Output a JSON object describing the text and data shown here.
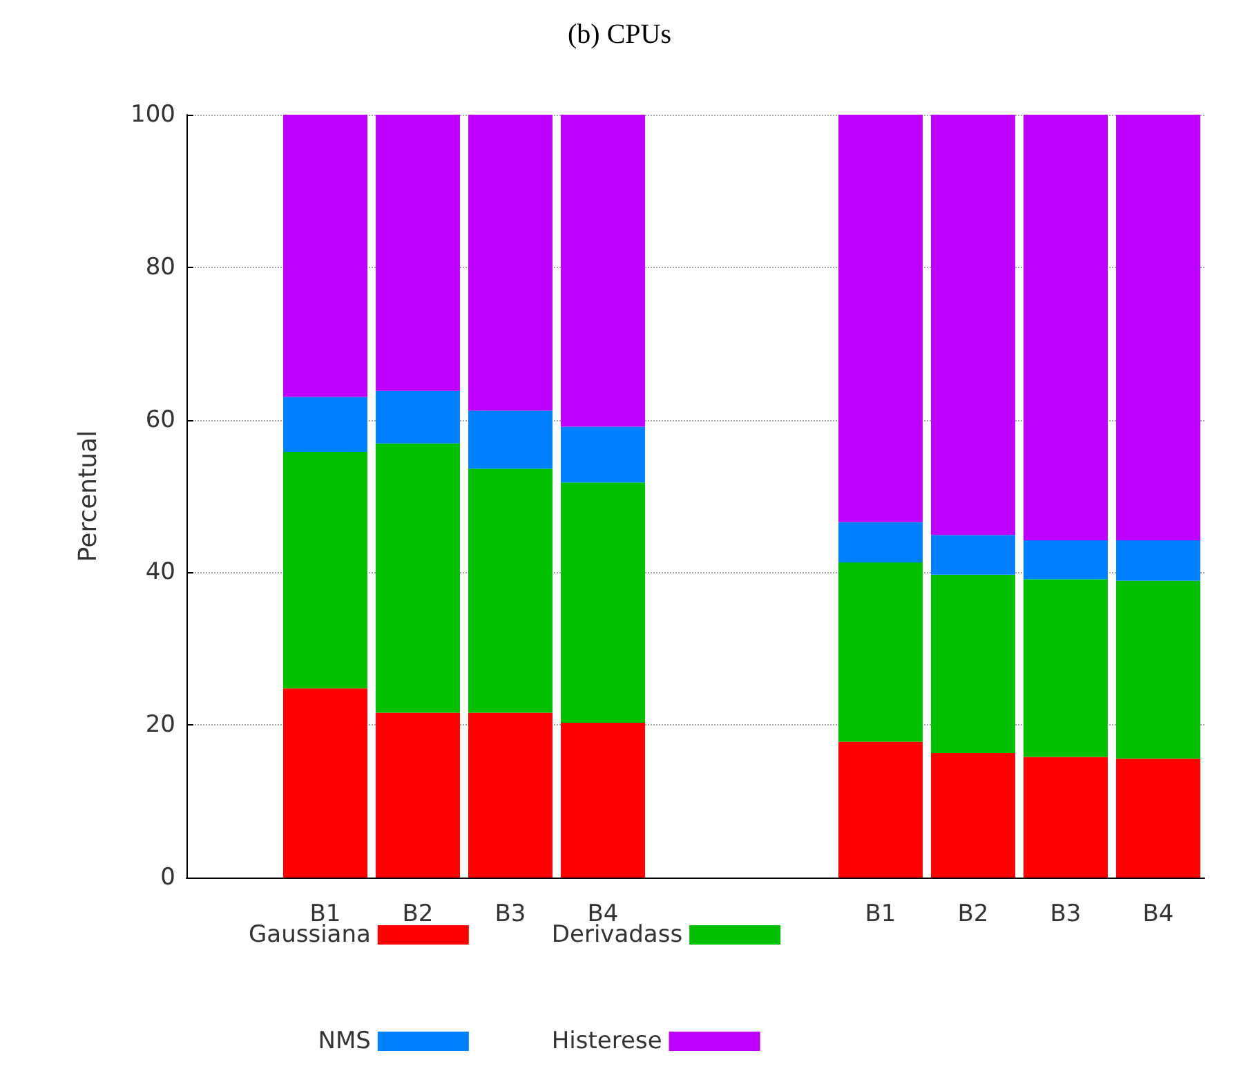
{
  "chart_data": {
    "type": "bar",
    "title": "(b) CPUs",
    "ylabel": "Percentual",
    "stacked": true,
    "categories": [
      null,
      "B1",
      "B2",
      "B3",
      "B4",
      null,
      null,
      "B1",
      "B2",
      "B3",
      "B4"
    ],
    "series": [
      {
        "name": "Gaussiana",
        "color": "#ff0000",
        "values": [
          null,
          24.8,
          21.6,
          21.6,
          20.3,
          null,
          null,
          17.8,
          16.3,
          15.8,
          15.6
        ]
      },
      {
        "name": "Derivadass",
        "color": "#00c000",
        "values": [
          null,
          31.0,
          35.3,
          32.0,
          31.5,
          null,
          null,
          23.5,
          23.4,
          23.3,
          23.3
        ]
      },
      {
        "name": "NMS",
        "color": "#0080ff",
        "values": [
          null,
          7.2,
          6.9,
          7.6,
          7.3,
          null,
          null,
          5.3,
          5.2,
          5.1,
          5.3
        ]
      },
      {
        "name": "Histerese",
        "color": "#c000ff",
        "values": [
          null,
          37.0,
          36.2,
          38.8,
          40.9,
          null,
          null,
          53.4,
          55.1,
          55.8,
          55.8
        ]
      }
    ],
    "ylim": [
      0,
      100
    ],
    "yticks": [
      0,
      20,
      40,
      60,
      80,
      100
    ],
    "grid": "y",
    "legend": "bottom"
  }
}
